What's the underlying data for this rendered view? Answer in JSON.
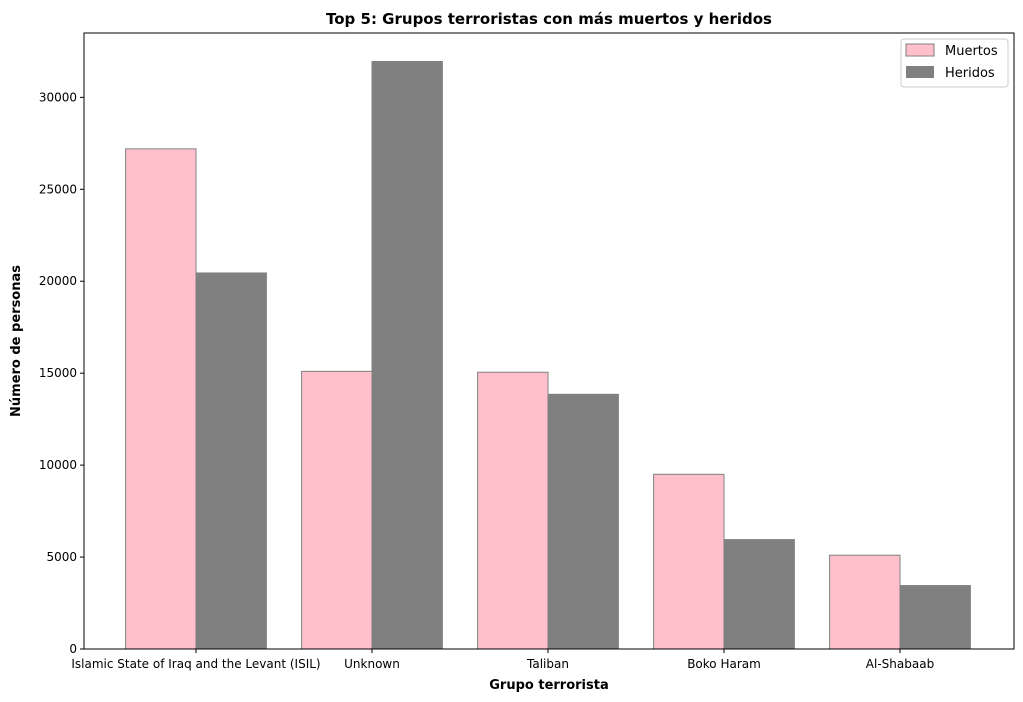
{
  "chart_data": {
    "type": "bar",
    "title": "Top 5: Grupos terroristas con más muertos y heridos",
    "xlabel": "Grupo terrorista",
    "ylabel": "Número de personas",
    "categories": [
      "Islamic State of Iraq and the Levant (ISIL)",
      "Unknown",
      "Taliban",
      "Boko Haram",
      "Al-Shabaab"
    ],
    "series": [
      {
        "name": "Muertos",
        "values": [
          27200,
          15100,
          15050,
          9500,
          5100
        ],
        "color": "#ffc0cb"
      },
      {
        "name": "Heridos",
        "values": [
          20450,
          31950,
          13850,
          5950,
          3450
        ],
        "color": "#808080"
      }
    ],
    "ylim": [
      0,
      33500
    ],
    "yticks": [
      0,
      5000,
      10000,
      15000,
      20000,
      25000,
      30000
    ],
    "grid": false,
    "legend_position": "top-right",
    "edge_color": "#808080"
  }
}
